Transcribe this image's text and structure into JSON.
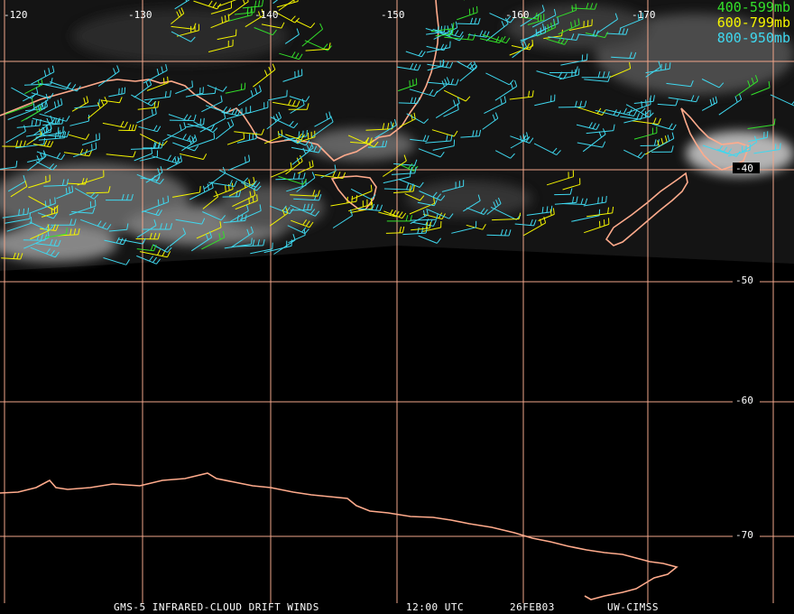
{
  "map": {
    "longitude_labels": [
      "-120",
      "-130",
      "-140",
      "-150",
      "-160",
      "-170"
    ],
    "latitude_labels": [
      "-40",
      "-50",
      "-60",
      "-70"
    ],
    "colors": {
      "grid": "#f0a68a",
      "coast": "#ffab8c",
      "background": "#000000",
      "cloud": "#9a9a9a"
    }
  },
  "legend": {
    "entries": [
      {
        "label": "400-599mb",
        "color": "#33e02a"
      },
      {
        "label": "600-799mb",
        "color": "#f4f400"
      },
      {
        "label": "800-950mb",
        "color": "#3fd8ef"
      }
    ]
  },
  "footer": {
    "title": "GMS-5 INFRARED-CLOUD DRIFT WINDS",
    "time": "12:00 UTC",
    "date": "26FEB03",
    "source": "UW-CIMSS"
  }
}
